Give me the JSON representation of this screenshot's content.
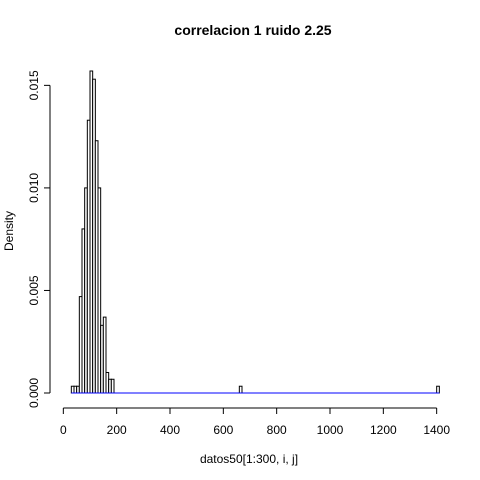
{
  "chart_data": {
    "type": "bar",
    "title": "correlacion 1 ruido 2.25",
    "xlabel": "datos50[1:300, i, j]",
    "ylabel": "Density",
    "xlim": [
      -20,
      1420
    ],
    "ylim": [
      0,
      0.0157
    ],
    "x_ticks": [
      0,
      200,
      400,
      600,
      800,
      1000,
      1200,
      1400
    ],
    "y_ticks": [
      0.0,
      0.005,
      0.01,
      0.015
    ],
    "y_tick_labels": [
      "0.000",
      "0.005",
      "0.010",
      "0.015"
    ],
    "bin_width": 10,
    "bins": [
      {
        "x0": 30,
        "x1": 40,
        "density": 0.00033
      },
      {
        "x0": 40,
        "x1": 50,
        "density": 0.00033
      },
      {
        "x0": 50,
        "x1": 60,
        "density": 0.00033
      },
      {
        "x0": 60,
        "x1": 70,
        "density": 0.0047
      },
      {
        "x0": 70,
        "x1": 80,
        "density": 0.008
      },
      {
        "x0": 80,
        "x1": 90,
        "density": 0.01
      },
      {
        "x0": 90,
        "x1": 100,
        "density": 0.0133
      },
      {
        "x0": 100,
        "x1": 110,
        "density": 0.0157
      },
      {
        "x0": 110,
        "x1": 120,
        "density": 0.0153
      },
      {
        "x0": 120,
        "x1": 130,
        "density": 0.0123
      },
      {
        "x0": 130,
        "x1": 140,
        "density": 0.01
      },
      {
        "x0": 140,
        "x1": 150,
        "density": 0.0033
      },
      {
        "x0": 150,
        "x1": 160,
        "density": 0.0037
      },
      {
        "x0": 160,
        "x1": 170,
        "density": 0.001
      },
      {
        "x0": 170,
        "x1": 180,
        "density": 0.00067
      },
      {
        "x0": 180,
        "x1": 190,
        "density": 0.00067
      },
      {
        "x0": 660,
        "x1": 670,
        "density": 0.00033
      },
      {
        "x0": 1400,
        "x1": 1410,
        "density": 0.00033
      }
    ],
    "baseline": {
      "from": 30,
      "to": 1410,
      "color": "#0000ff"
    },
    "bar_fill": "#ffffff",
    "bar_stroke": "#000000",
    "grid": false
  }
}
